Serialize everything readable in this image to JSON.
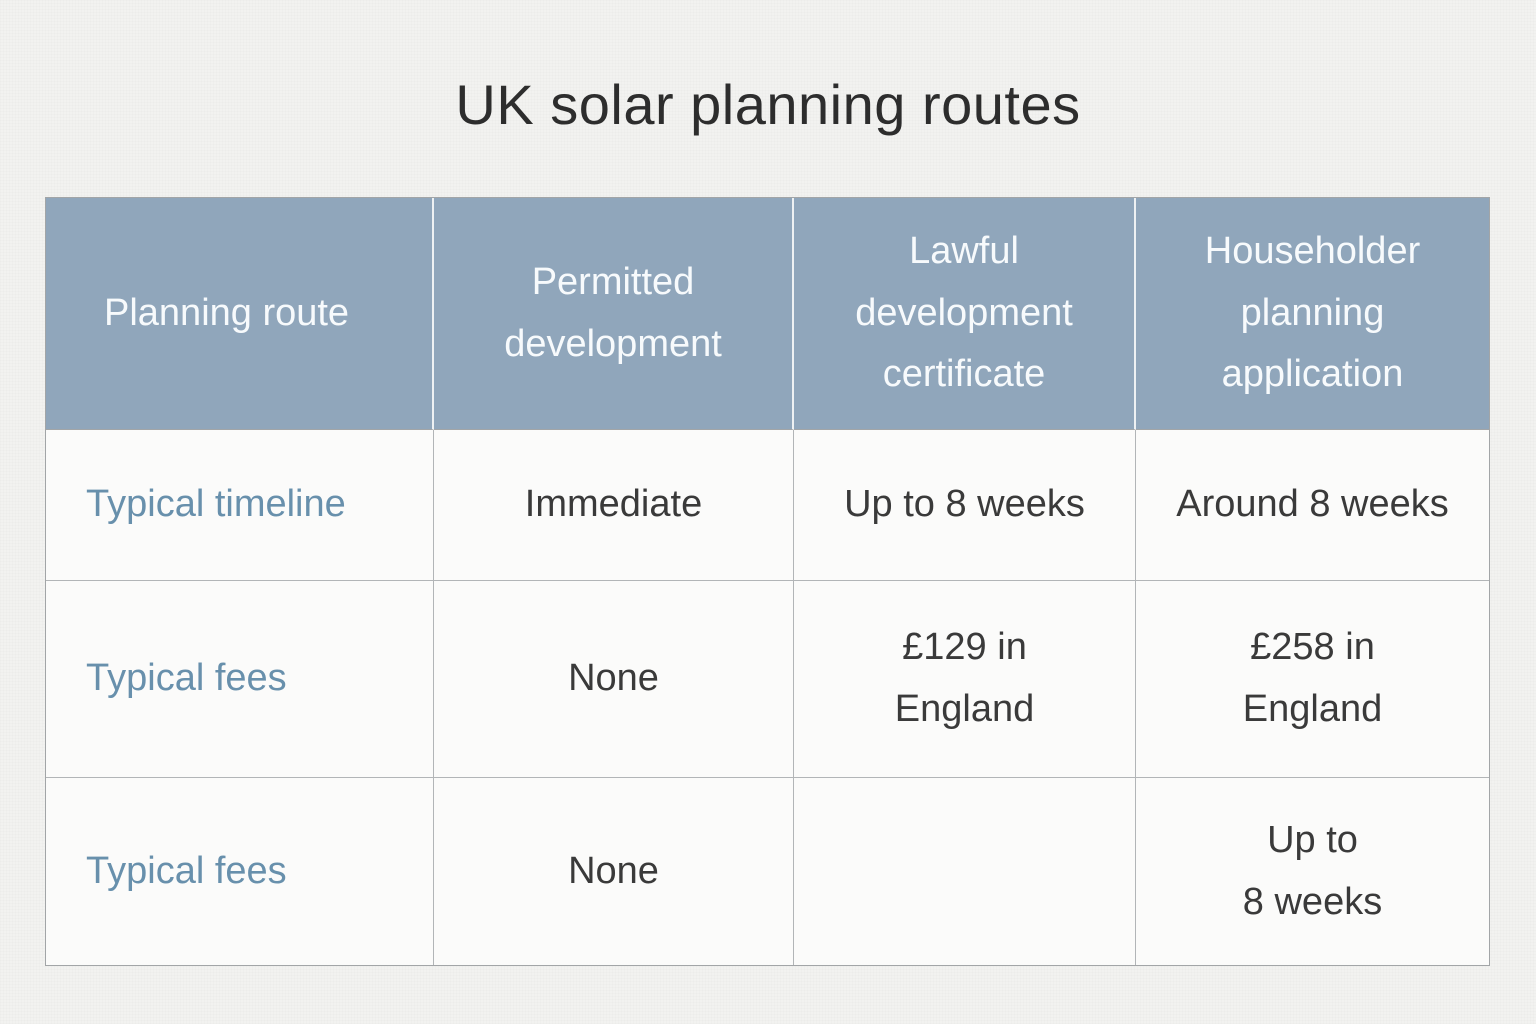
{
  "title": "UK solar planning routes",
  "table": {
    "header": [
      "Planning route",
      "Permitted\ndevelopment",
      "Lawful\ndevelopment\ncertificate",
      "Householder\nplanning\napplication"
    ],
    "rows": [
      {
        "label": "Typical timeline",
        "cells": [
          "Immediate",
          "Up to 8 weeks",
          "Around 8 weeks"
        ]
      },
      {
        "label": "Typical fees",
        "cells": [
          "None",
          "£129 in\nEngland",
          "£258 in\nEngland"
        ]
      },
      {
        "label": "Typical fees",
        "cells": [
          "None",
          "",
          "Up to\n8 weeks"
        ]
      }
    ]
  },
  "colors": {
    "page_bg": "#f2f2f0",
    "cell_bg": "#fbfbfa",
    "header_bg": "#90a6bb",
    "header_text": "#f7fafc",
    "row_label_text": "#6890ac",
    "body_text": "#3a3a3a",
    "grid_line": "#b2b5b7"
  },
  "chart_data": {
    "type": "table",
    "title": "UK solar planning routes",
    "columns": [
      "Planning route",
      "Permitted development",
      "Lawful development certificate",
      "Householder planning application"
    ],
    "rows": [
      [
        "Typical timeline",
        "Immediate",
        "Up to 8 weeks",
        "Around 8 weeks"
      ],
      [
        "Typical fees",
        "None",
        "£129 in England",
        "£258 in England"
      ],
      [
        "Typical fees",
        "None",
        "",
        "Up to 8 weeks"
      ]
    ]
  }
}
